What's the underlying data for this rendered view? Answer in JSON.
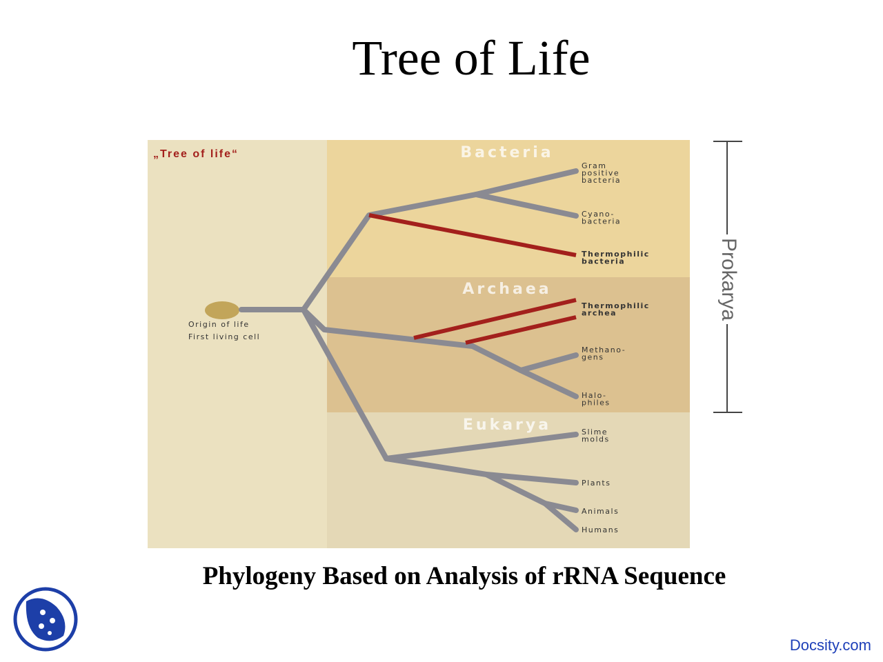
{
  "title": "Tree of Life",
  "diagram": {
    "heading": "„Tree of life“",
    "domains": [
      "Bacteria",
      "Archaea",
      "Eukarya"
    ],
    "origin": [
      "Origin of life",
      "First living cell"
    ],
    "leaves": [
      [
        "Gram",
        "positive",
        "bacteria"
      ],
      [
        "Cyano-",
        "bacteria"
      ],
      [
        "Thermophilic",
        "bacteria"
      ],
      [
        "Thermophilic",
        "archea"
      ],
      [
        "Methano-",
        "gens"
      ],
      [
        "Halo-",
        "philes"
      ],
      [
        "Slime",
        "molds"
      ],
      [
        "Plants"
      ],
      [
        "Animals"
      ],
      [
        "Humans"
      ]
    ],
    "bracket_label": "Prokarya"
  },
  "caption": "Phylogeny Based on Analysis of rRNA Sequence",
  "footer": "Docsity.com"
}
